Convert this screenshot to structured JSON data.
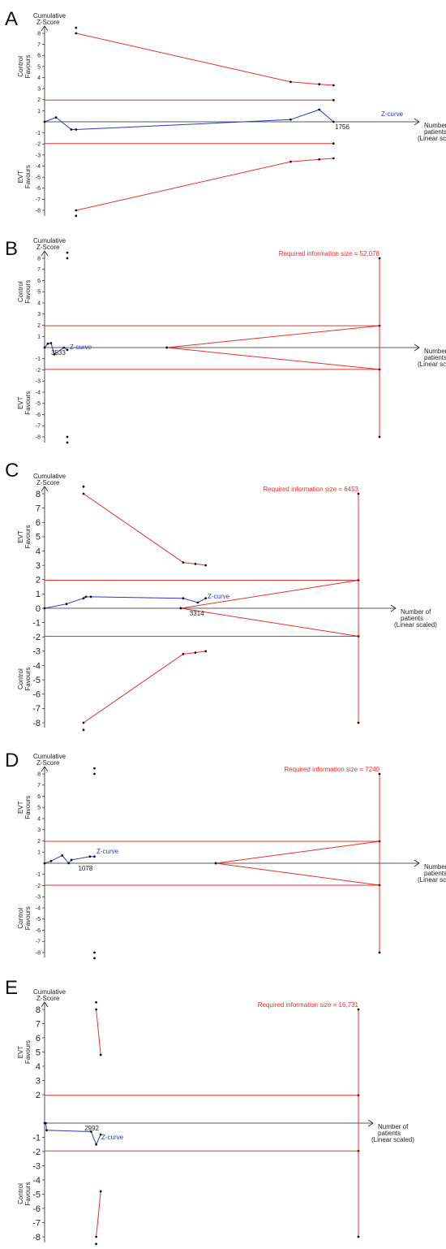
{
  "figure": {
    "panel_letters": [
      "A",
      "B",
      "C",
      "D",
      "E"
    ],
    "colors": {
      "boundary": "#e8312a",
      "zcurve": "#2b39c8",
      "axis": "#222222",
      "marker": "#111111",
      "label_red": "#e8312a",
      "label_blue": "#2b39c8"
    }
  },
  "chart_data": [
    {
      "panel": "A",
      "type": "line",
      "title": "Cumulative Z-Score",
      "xlabel": "Number of patients (Linear scaled)",
      "upper_label": "Control Favours",
      "lower_label": "EVT Favours",
      "x_tick": "1756",
      "xlim": [
        0,
        1756
      ],
      "ylim": [
        -8.5,
        8.5
      ],
      "yticks": [
        -8,
        -7,
        -6,
        -5,
        -4,
        -3,
        -2,
        -1,
        1,
        2,
        3,
        4,
        5,
        6,
        7,
        8
      ],
      "series": [
        {
          "name": "Z-curve",
          "x": [
            0,
            60,
            140,
            165,
            1290,
            1440,
            1515
          ],
          "y": [
            0,
            0.4,
            -0.7,
            -0.7,
            0.2,
            1.1,
            0
          ]
        },
        {
          "x": [
            165,
            1290,
            1440,
            1515
          ],
          "y": [
            8,
            3.6,
            3.4,
            3.3
          ]
        },
        {
          "x": [
            165,
            1290,
            1440,
            1515
          ],
          "y": [
            -8,
            -3.6,
            -3.4,
            -3.3
          ]
        },
        {
          "x": [
            0,
            1515
          ],
          "y": [
            1.96,
            1.96
          ]
        },
        {
          "x": [
            0,
            1515
          ],
          "y": [
            -1.96,
            -1.96
          ]
        }
      ],
      "points": {
        "x": [
          165,
          165
        ],
        "y": [
          8.5,
          -8.5
        ]
      }
    },
    {
      "panel": "B",
      "type": "line",
      "title": "Cumulative Z-Score",
      "xlabel": "Number of patients (Linear scaled)",
      "upper_label": "Control Favours",
      "lower_label": "EVT Favours",
      "x_tick": "3533",
      "xlim": [
        0,
        52078
      ],
      "ylim": [
        -8.5,
        8.5
      ],
      "yticks": [
        -8,
        -7,
        -6,
        -5,
        -4,
        -3,
        -2,
        -1,
        1,
        2,
        3,
        4,
        5,
        6,
        7,
        8
      ],
      "ris_label": "Required information size = 52,078",
      "ris": 52078,
      "series": [
        {
          "name": "Z-curve",
          "x": [
            0,
            500,
            1000,
            1500,
            3000,
            3533
          ],
          "y": [
            0,
            0.35,
            0.4,
            -0.6,
            0,
            -0.2
          ]
        },
        {
          "x": [
            19000,
            52078
          ],
          "y": [
            0,
            1.96
          ]
        },
        {
          "x": [
            19000,
            52078
          ],
          "y": [
            0,
            -1.96
          ]
        },
        {
          "x": [
            0,
            52078
          ],
          "y": [
            1.96,
            1.96
          ]
        },
        {
          "x": [
            0,
            52078
          ],
          "y": [
            -1.96,
            -1.96
          ]
        },
        {
          "x": [
            52078,
            52078
          ],
          "y": [
            -8,
            8
          ]
        }
      ],
      "points": {
        "x": [
          3533,
          3533,
          3533,
          3533
        ],
        "y": [
          8.5,
          8,
          -8,
          -8.5
        ]
      }
    },
    {
      "panel": "C",
      "type": "line",
      "title": "Cumulative Z-Score",
      "xlabel": "Number of patients (Linear scaled)",
      "upper_label": "EVT Favours",
      "lower_label": "Control Favours",
      "x_tick": "3314",
      "xlim": [
        0,
        6453
      ],
      "ylim": [
        -8.5,
        8.5
      ],
      "yticks": [
        -8,
        -7,
        -6,
        -5,
        -4,
        -3,
        -2,
        -1,
        0,
        1,
        2,
        3,
        4,
        5,
        6,
        7,
        8
      ],
      "ris_label": "Required information size = 6453",
      "ris": 6453,
      "series": [
        {
          "name": "Z-curve",
          "x": [
            0,
            450,
            800,
            850,
            950,
            2850,
            3150,
            3314
          ],
          "y": [
            0,
            0.3,
            0.7,
            0.8,
            0.8,
            0.7,
            0.4,
            0.7
          ]
        },
        {
          "x": [
            800,
            2850,
            3100,
            3314
          ],
          "y": [
            8,
            3.2,
            3.1,
            3
          ]
        },
        {
          "x": [
            800,
            2850,
            3100,
            3314
          ],
          "y": [
            -8,
            -3.2,
            -3.1,
            -3
          ]
        },
        {
          "x": [
            2800,
            6453
          ],
          "y": [
            0,
            1.96
          ]
        },
        {
          "x": [
            2800,
            6453
          ],
          "y": [
            0,
            -1.96
          ]
        },
        {
          "x": [
            0,
            6453
          ],
          "y": [
            1.96,
            1.96
          ]
        },
        {
          "x": [
            0,
            6453
          ],
          "y": [
            -1.96,
            -1.96
          ]
        },
        {
          "x": [
            6453,
            6453
          ],
          "y": [
            -8,
            8
          ]
        }
      ],
      "points": {
        "x": [
          800,
          800
        ],
        "y": [
          8.5,
          -8.5
        ]
      }
    },
    {
      "panel": "D",
      "type": "line",
      "title": "Cumulative Z-Score",
      "xlabel": "Number of patients (Linear scaled)",
      "upper_label": "EVT Favours",
      "lower_label": "Control Favours",
      "x_tick": "1078",
      "xlim": [
        0,
        7240
      ],
      "ylim": [
        -8.5,
        8.5
      ],
      "yticks": [
        -8,
        -7,
        -6,
        -5,
        -4,
        -3,
        -2,
        -1,
        1,
        2,
        3,
        4,
        5,
        6,
        7,
        8
      ],
      "ris_label": "Required information size = 7240",
      "ris": 7240,
      "series": [
        {
          "name": "Z-curve",
          "x": [
            0,
            140,
            380,
            520,
            580,
            980,
            1078
          ],
          "y": [
            0,
            0.2,
            0.7,
            0,
            0.3,
            0.6,
            0.6
          ]
        },
        {
          "x": [
            3700,
            7240
          ],
          "y": [
            0,
            1.96
          ]
        },
        {
          "x": [
            3700,
            7240
          ],
          "y": [
            0,
            -1.96
          ]
        },
        {
          "x": [
            0,
            7240
          ],
          "y": [
            1.96,
            1.96
          ]
        },
        {
          "x": [
            0,
            7240
          ],
          "y": [
            -1.96,
            -1.96
          ]
        },
        {
          "x": [
            7240,
            7240
          ],
          "y": [
            -8,
            8
          ]
        }
      ],
      "points": {
        "x": [
          1078,
          1078,
          1078,
          1078
        ],
        "y": [
          8.5,
          8,
          -8,
          -8.5
        ]
      }
    },
    {
      "panel": "E",
      "type": "line",
      "title": "Cumulative Z-Score",
      "xlabel": "Number of patients (Linear scaled)",
      "upper_label": "EVT Favours",
      "lower_label": "Control Favours",
      "x_tick": "2992",
      "xlim": [
        0,
        16731
      ],
      "ylim": [
        -8.5,
        8.5
      ],
      "yticks": [
        -8,
        -7,
        -6,
        -5,
        -4,
        -3,
        -2,
        -1,
        2,
        3,
        4,
        5,
        6,
        7,
        8
      ],
      "ris_label": "Required information size = 16,731",
      "ris": 16731,
      "series": [
        {
          "name": "Z-curve",
          "x": [
            0,
            60,
            110,
            2480,
            2750,
            2992
          ],
          "y": [
            0,
            0,
            -0.5,
            -0.6,
            -1.5,
            -0.8
          ]
        },
        {
          "x": [
            2750,
            2992
          ],
          "y": [
            8,
            4.8
          ]
        },
        {
          "x": [
            2750,
            2992
          ],
          "y": [
            -8,
            -4.8
          ]
        },
        {
          "x": [
            0,
            16731
          ],
          "y": [
            1.96,
            1.96
          ]
        },
        {
          "x": [
            0,
            16731
          ],
          "y": [
            -1.96,
            -1.96
          ]
        },
        {
          "x": [
            16731,
            16731
          ],
          "y": [
            -8,
            8
          ]
        }
      ],
      "points": {
        "x": [
          2750,
          2750
        ],
        "y": [
          8.5,
          -8.5
        ]
      }
    }
  ]
}
